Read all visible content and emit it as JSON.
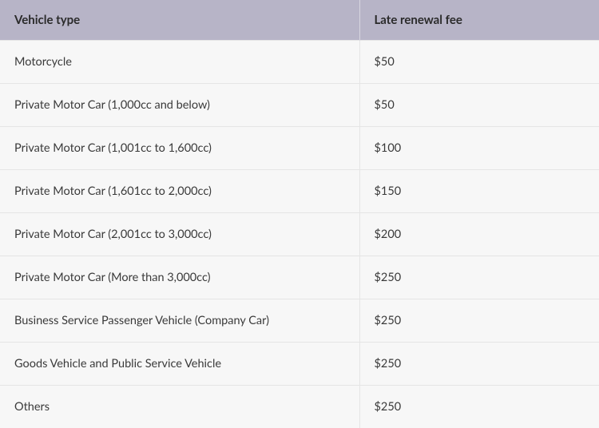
{
  "table": {
    "type": "table",
    "header_bg_color": "#b7b4c7",
    "header_text_color": "#2a2a2a",
    "row_bg_color": "#f7f7f7",
    "row_text_color": "#3a3a3a",
    "border_color": "#e5e5e5",
    "header_fontsize": 15,
    "cell_fontsize": 14.5,
    "header_fontweight": 700,
    "cell_fontweight": 400,
    "columns": [
      {
        "label": "Vehicle type",
        "width_pct": 60
      },
      {
        "label": "Late renewal fee",
        "width_pct": 40
      }
    ],
    "rows": [
      {
        "type": "Motorcycle",
        "fee": "$50"
      },
      {
        "type": "Private Motor Car (1,000cc and below)",
        "fee": "$50"
      },
      {
        "type": "Private Motor Car (1,001cc to 1,600cc)",
        "fee": "$100"
      },
      {
        "type": "Private Motor Car (1,601cc to 2,000cc)",
        "fee": "$150"
      },
      {
        "type": "Private Motor Car (2,001cc to 3,000cc)",
        "fee": "$200"
      },
      {
        "type": "Private Motor Car (More than 3,000cc)",
        "fee": "$250"
      },
      {
        "type": "Business Service Passenger Vehicle (Company Car)",
        "fee": "$250"
      },
      {
        "type": "Goods Vehicle and Public Service Vehicle",
        "fee": "$250"
      },
      {
        "type": "Others",
        "fee": "$250"
      }
    ]
  }
}
